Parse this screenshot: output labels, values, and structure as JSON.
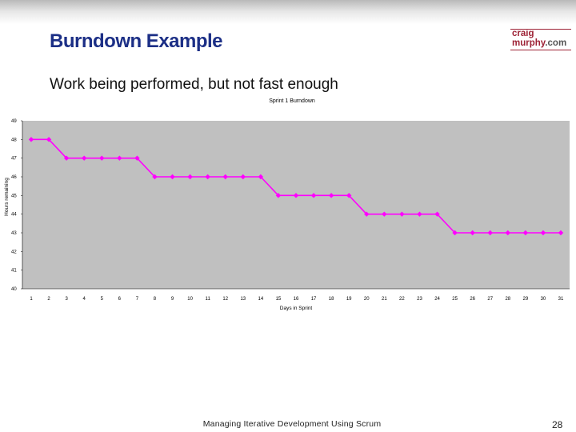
{
  "slide": {
    "title": "Burndown Example",
    "subtitle": "Work being performed, but not fast enough",
    "footer": "Managing Iterative Development Using Scrum",
    "page_number": "28",
    "logo": {
      "line1": "craig",
      "line2": "murphy",
      "suffix": ".com"
    }
  },
  "colors": {
    "title": "#1c2f86",
    "logo": "#9d2235",
    "plot_background": "#c0c0c0",
    "series": "#ff00ff"
  },
  "chart_data": {
    "type": "line",
    "title": "Sprint 1 Burndown",
    "xlabel": "Days in Sprint",
    "ylabel": "Hours remaining",
    "ylim": [
      40,
      49
    ],
    "yticks": [
      40,
      41,
      42,
      43,
      44,
      45,
      46,
      47,
      48,
      49
    ],
    "grid": false,
    "legend": "none",
    "x": [
      1,
      2,
      3,
      4,
      5,
      6,
      7,
      8,
      9,
      10,
      11,
      12,
      13,
      14,
      15,
      16,
      17,
      18,
      19,
      20,
      21,
      22,
      23,
      24,
      25,
      26,
      27,
      28,
      29,
      30,
      31
    ],
    "series": [
      {
        "values": [
          48,
          48,
          47,
          47,
          47,
          47,
          47,
          46,
          46,
          46,
          46,
          46,
          46,
          46,
          45,
          45,
          45,
          45,
          45,
          44,
          44,
          44,
          44,
          44,
          43,
          43,
          43,
          43,
          43,
          43,
          43
        ]
      }
    ]
  }
}
